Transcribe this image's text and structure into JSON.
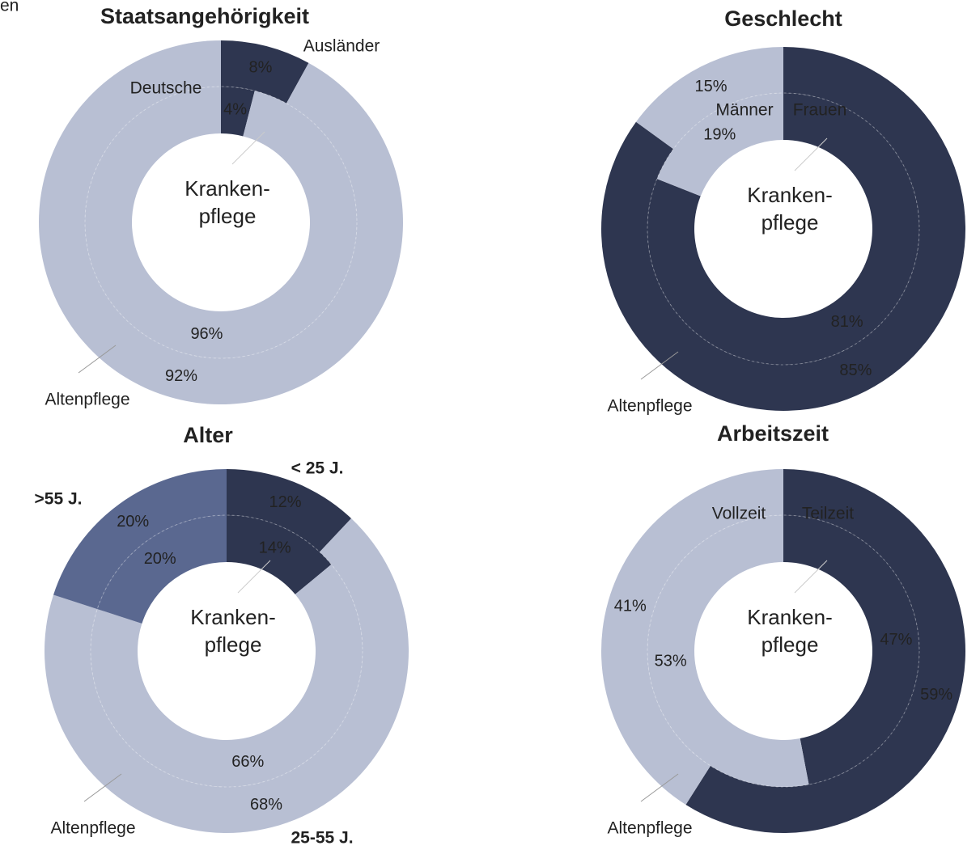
{
  "annotation": "en",
  "chart_data": [
    {
      "type": "donut",
      "title": "Staatsangehörigkeit",
      "categories": [
        "Ausländer",
        "Deutsche"
      ],
      "colors": [
        "#2e3650",
        "#b8bfd3"
      ],
      "series": [
        {
          "name": "Altenpflege",
          "values": [
            8,
            92
          ],
          "value_labels": [
            "8%",
            "92%"
          ]
        },
        {
          "name": "Kranken-\npflege",
          "values": [
            4,
            96
          ],
          "value_labels": [
            "4%",
            "96%"
          ]
        }
      ]
    },
    {
      "type": "donut",
      "title": "Geschlecht",
      "categories": [
        "Frauen",
        "Männer"
      ],
      "colors": [
        "#2e3650",
        "#b8bfd3"
      ],
      "series": [
        {
          "name": "Altenpflege",
          "values": [
            85,
            15
          ],
          "value_labels": [
            "85%",
            "15%"
          ]
        },
        {
          "name": "Kranken-\npflege",
          "values": [
            81,
            19
          ],
          "value_labels": [
            "81%",
            "19%"
          ]
        }
      ]
    },
    {
      "type": "donut",
      "title": "Alter",
      "categories": [
        "< 25 J.",
        "25-55 J.",
        ">55 J."
      ],
      "colors": [
        "#2e3650",
        "#b8bfd3",
        "#5a6890"
      ],
      "series": [
        {
          "name": "Altenpflege",
          "values": [
            12,
            68,
            20
          ],
          "value_labels": [
            "12%",
            "68%",
            "20%"
          ]
        },
        {
          "name": "Kranken-\npflege",
          "values": [
            14,
            66,
            20
          ],
          "value_labels": [
            "14%",
            "66%",
            "20%"
          ]
        }
      ]
    },
    {
      "type": "donut",
      "title": "Arbeitszeit",
      "categories": [
        "Teilzeit",
        "Vollzeit"
      ],
      "colors": [
        "#2e3650",
        "#b8bfd3"
      ],
      "series": [
        {
          "name": "Altenpflege",
          "values": [
            59,
            41
          ],
          "value_labels": [
            "59%",
            "41%"
          ]
        },
        {
          "name": "Kranken-\npflege",
          "values": [
            47,
            53
          ],
          "value_labels": [
            "47%",
            "53%"
          ]
        }
      ]
    }
  ]
}
